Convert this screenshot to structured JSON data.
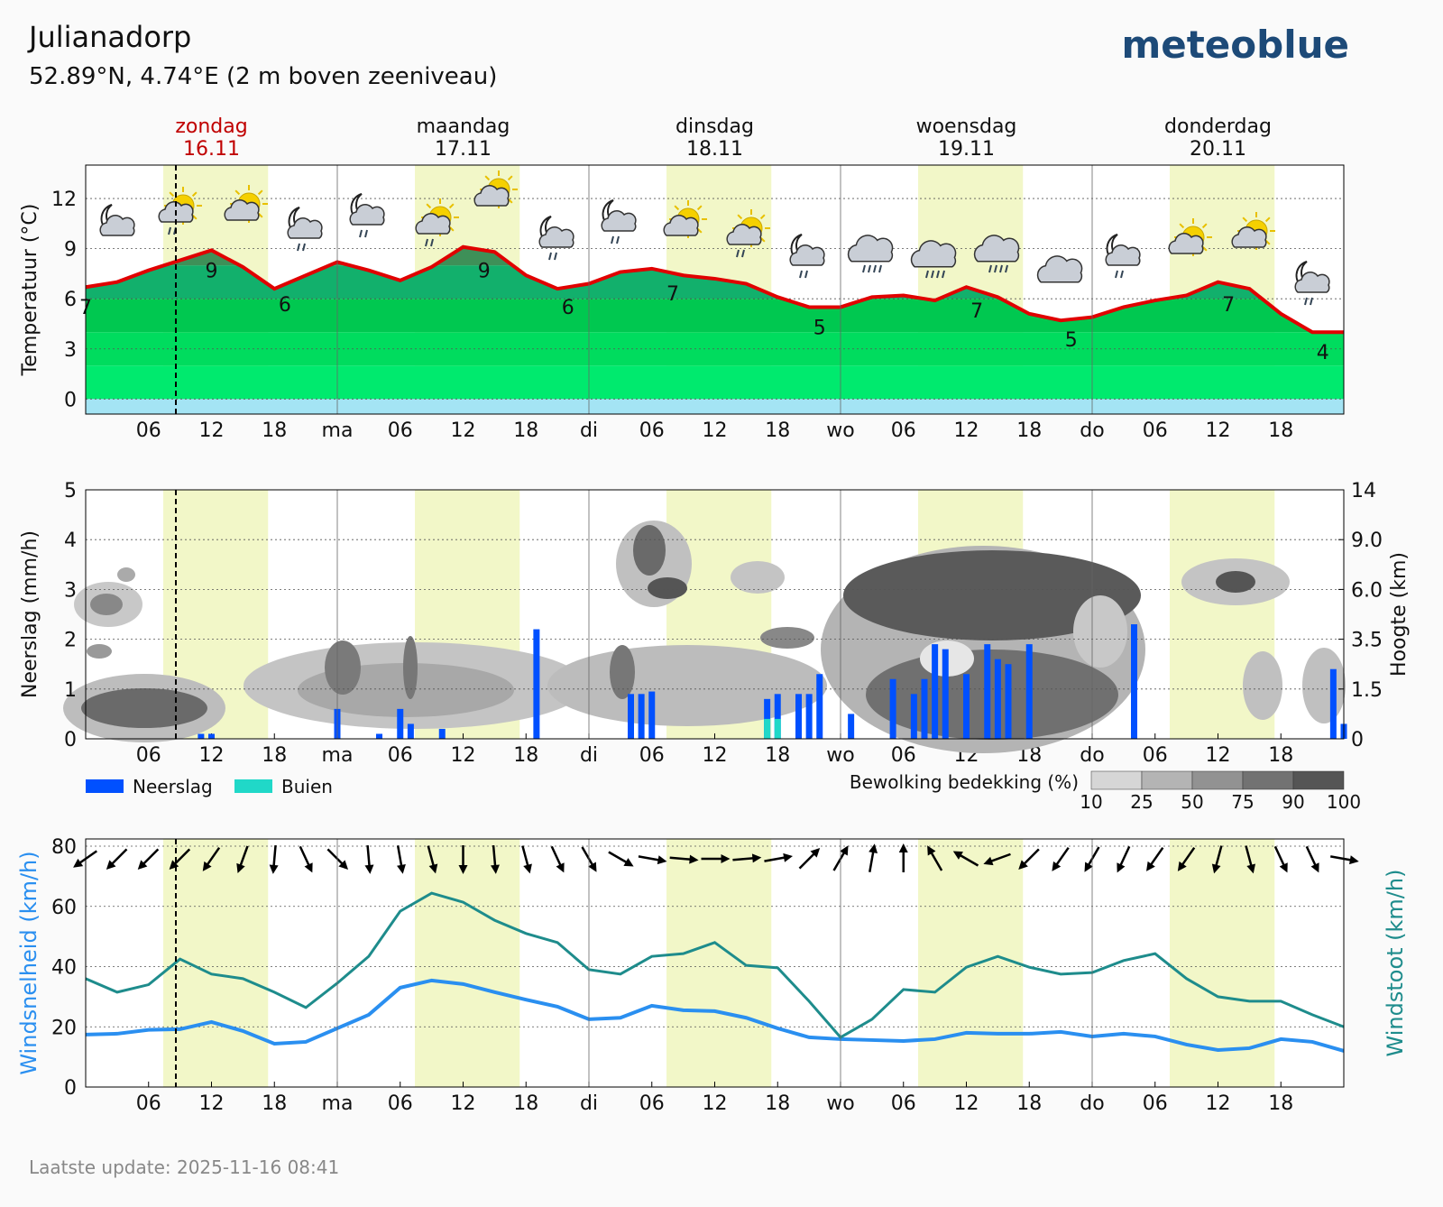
{
  "header": {
    "title": "Julianadorp",
    "subtitle": "52.89°N, 4.74°E (2 m boven zeeniveau)",
    "logo": "meteoblue",
    "footer": "Laatste update: 2025-11-16 08:41"
  },
  "days": [
    {
      "name": "zondag",
      "date": "16.11",
      "color": "#c00000"
    },
    {
      "name": "maandag",
      "date": "17.11",
      "color": "#111111"
    },
    {
      "name": "dinsdag",
      "date": "18.11",
      "color": "#111111"
    },
    {
      "name": "woensdag",
      "date": "19.11",
      "color": "#111111"
    },
    {
      "name": "donderdag",
      "date": "20.11",
      "color": "#111111"
    }
  ],
  "chart_data": [
    {
      "type": "area-line",
      "ylabel": "Temperatuur (°C)",
      "x": [
        0,
        3,
        6,
        9,
        12,
        15,
        18,
        21,
        24,
        27,
        30,
        33,
        36,
        39,
        42,
        45,
        48,
        51,
        54,
        57,
        60,
        63,
        66,
        69,
        72,
        75,
        78,
        81,
        84,
        87,
        90,
        93,
        96,
        99,
        102,
        105,
        108,
        111,
        114,
        117,
        120
      ],
      "values": [
        6.7,
        7.0,
        7.7,
        8.3,
        8.9,
        7.9,
        6.6,
        7.4,
        8.2,
        7.7,
        7.1,
        7.9,
        9.1,
        8.8,
        7.4,
        6.6,
        6.9,
        7.6,
        7.8,
        7.4,
        7.2,
        6.9,
        6.1,
        5.5,
        5.5,
        6.1,
        6.2,
        5.9,
        6.7,
        6.1,
        5.1,
        4.7,
        4.9,
        5.5,
        5.9,
        6.2,
        7.0,
        6.6,
        5.1,
        4.0,
        4.0
      ],
      "color": "#e00000",
      "xlim": [
        0,
        120
      ],
      "ylim": [
        -0.9,
        14
      ],
      "yticks": [
        0,
        3,
        6,
        9,
        12
      ],
      "xticks": [
        {
          "value": 6,
          "label": "06"
        },
        12,
        18,
        {
          "value": 24,
          "label": "ma"
        },
        {
          "value": 30,
          "label": "06"
        },
        {
          "value": 36,
          "label": "12"
        },
        {
          "value": 42,
          "label": "18"
        },
        {
          "value": 48,
          "label": "di"
        },
        {
          "value": 54,
          "label": "06"
        },
        {
          "value": 60,
          "label": "12"
        },
        {
          "value": 66,
          "label": "18"
        },
        {
          "value": 72,
          "label": "wo"
        },
        {
          "value": 78,
          "label": "06"
        },
        {
          "value": 84,
          "label": "12"
        },
        {
          "value": 90,
          "label": "18"
        },
        {
          "value": 96,
          "label": "do"
        },
        {
          "value": 102,
          "label": "06"
        },
        {
          "value": 108,
          "label": "12"
        },
        {
          "value": 114,
          "label": "18"
        }
      ],
      "grid": true,
      "band_edges": [
        0,
        2,
        4,
        6,
        8
      ],
      "band_colors": [
        "#a4e4f4",
        "#00ea6e",
        "#00dc5e",
        "#00c850",
        "#12b06c",
        "#3e9058"
      ],
      "annotations": {
        "x": [
          0,
          12,
          19,
          38,
          46,
          56,
          70,
          85,
          94,
          109,
          118
        ],
        "values": [
          7,
          9,
          6,
          9,
          6,
          7,
          5,
          7,
          5,
          7,
          4
        ]
      }
    },
    {
      "type": "bar",
      "ylabel": "Neerslag (mm/h)",
      "y2label": "Hoogte (km)",
      "x": [
        11,
        12,
        24,
        28,
        30,
        31,
        34,
        43,
        52,
        53,
        54,
        65,
        66,
        68,
        69,
        70,
        73,
        77,
        79,
        80,
        81,
        82,
        84,
        86,
        87,
        88,
        90,
        100,
        119,
        120
      ],
      "series": [
        {
          "name": "Neerslag",
          "color": "#0050ff",
          "values": [
            0.1,
            0.1,
            0.6,
            0.1,
            0.6,
            0.3,
            0.2,
            2.2,
            0.9,
            0.9,
            0.95,
            0.8,
            0.9,
            0.9,
            0.9,
            1.3,
            0.5,
            1.2,
            0.9,
            1.2,
            1.9,
            1.8,
            1.3,
            1.9,
            1.6,
            1.5,
            1.9,
            2.3,
            1.4,
            0.3
          ]
        },
        {
          "name": "Buien",
          "color": "#20d8c8",
          "values": [
            0,
            0,
            0,
            0,
            0,
            0,
            0,
            0,
            0,
            0,
            0,
            0.4,
            0.4,
            0,
            0,
            0,
            0,
            0,
            0,
            0,
            0,
            0,
            0,
            0,
            0,
            0,
            0,
            0,
            0,
            0
          ]
        }
      ],
      "xlim": [
        0,
        120
      ],
      "ylim": [
        0,
        5
      ],
      "yticks": [
        0,
        1,
        2,
        3,
        4,
        5
      ],
      "y2ticks": [
        0,
        1.5,
        3.5,
        {
          "value": 6,
          "label": "6.0"
        },
        {
          "value": 9,
          "label": "9.0"
        },
        14
      ],
      "grid": true,
      "cloud_legend": {
        "title": "Bewolking bedekking (%)",
        "ticks": [
          10,
          25,
          50,
          75,
          90,
          100
        ]
      }
    },
    {
      "type": "line",
      "x": [
        0,
        3,
        6,
        9,
        12,
        15,
        18,
        21,
        24,
        27,
        30,
        33,
        36,
        39,
        42,
        45,
        48,
        51,
        54,
        57,
        60,
        63,
        66,
        69,
        72,
        75,
        78,
        81,
        84,
        87,
        90,
        93,
        96,
        99,
        102,
        105,
        108,
        111,
        114,
        117,
        120
      ],
      "series": [
        {
          "name": "Windsnelheid (km/h)",
          "color": "#2a8ff0",
          "values": [
            17.4,
            17.7,
            19,
            19.2,
            21.6,
            18.6,
            14.4,
            15,
            19.5,
            24,
            33,
            35.4,
            34.2,
            31.5,
            29,
            26.7,
            22.5,
            23,
            27,
            25.5,
            25.2,
            23,
            19.5,
            16.5,
            15.9,
            15.6,
            15.3,
            15.9,
            18,
            17.7,
            17.7,
            18.3,
            16.8,
            17.7,
            16.8,
            14.1,
            12.3,
            12.9,
            15.9,
            15,
            12
          ]
        },
        {
          "name": "Windstoot (km/h)",
          "color": "#1e8c8c",
          "axis": "y2",
          "values": [
            36,
            31.5,
            34,
            42.5,
            37.5,
            36,
            31.5,
            26.4,
            34.5,
            43.4,
            58.4,
            64.4,
            61.4,
            55.4,
            51,
            48,
            39,
            37.5,
            43.4,
            44.3,
            48,
            40.4,
            39.6,
            28.5,
            16.5,
            22.5,
            32.4,
            31.5,
            39.8,
            43.4,
            39.8,
            37.5,
            38,
            42,
            44.3,
            36,
            30,
            28.5,
            28.5,
            24,
            20
          ]
        }
      ],
      "xlim": [
        0,
        120
      ],
      "ylim": [
        0,
        82.4
      ],
      "y2lim": [
        0,
        82.4
      ],
      "yticks": [
        0,
        20,
        40,
        60,
        80
      ],
      "grid": true,
      "wind_direction": [
        235,
        225,
        225,
        225,
        215,
        200,
        185,
        155,
        135,
        175,
        170,
        165,
        180,
        175,
        165,
        155,
        150,
        120,
        100,
        95,
        90,
        85,
        80,
        45,
        30,
        10,
        0,
        330,
        300,
        250,
        225,
        215,
        210,
        205,
        215,
        215,
        195,
        165,
        155,
        155,
        100
      ]
    }
  ]
}
